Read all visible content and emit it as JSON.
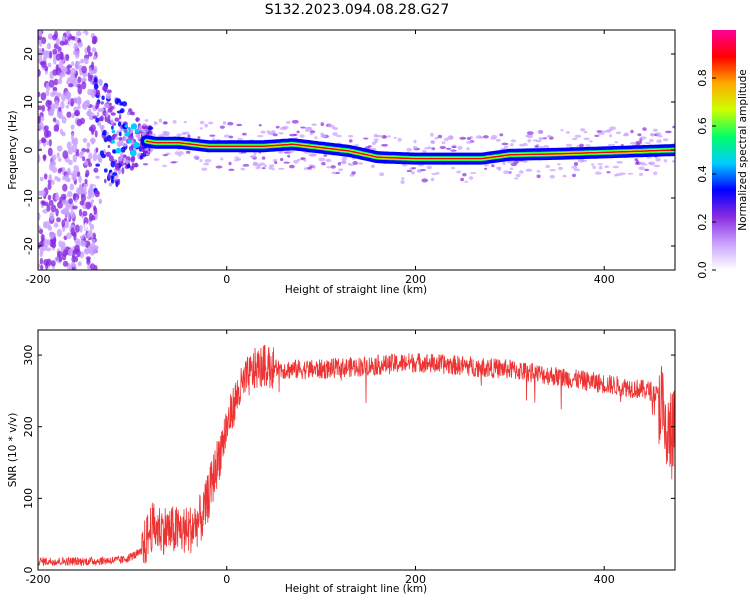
{
  "title": "S132.2023.094.08.28.G27",
  "chart_data": [
    {
      "type": "heatmap",
      "xlabel": "Height of straight line (km)",
      "ylabel": "Frequency (Hz)",
      "xlim": [
        -200,
        475
      ],
      "ylim": [
        -25,
        25
      ],
      "xticks": [
        -200,
        0,
        200,
        400
      ],
      "yticks": [
        20,
        10,
        0,
        -10,
        -20
      ],
      "grid": false,
      "colorbar": {
        "label": "Normalized spectral amplitude",
        "range": [
          0,
          1
        ],
        "ticks": [
          0.0,
          0.2,
          0.4,
          0.6,
          0.8
        ],
        "colors": [
          "#ffffff",
          "#c8a0ff",
          "#8a2be2",
          "#0000ff",
          "#00ccff",
          "#00ff66",
          "#ccff00",
          "#ffaa00",
          "#ff0000",
          "#ff0099"
        ]
      },
      "ridge": {
        "description_points_x": [
          -90,
          -75,
          -50,
          -20,
          0,
          40,
          70,
          100,
          130,
          160,
          200,
          270,
          300,
          350,
          400,
          475
        ],
        "frequency_hz": [
          2,
          1.5,
          1.5,
          0.8,
          0.8,
          0.8,
          1.2,
          0.5,
          -0.2,
          -1.5,
          -1.8,
          -1.8,
          -1.0,
          -0.8,
          -0.5,
          0
        ]
      }
    },
    {
      "type": "line",
      "xlabel": "Height of straight line (km)",
      "ylabel": "SNR (10 * v/v)",
      "xlim": [
        -200,
        475
      ],
      "ylim": [
        0,
        335
      ],
      "xticks": [
        -200,
        0,
        200,
        400
      ],
      "yticks": [
        0,
        100,
        200,
        300
      ],
      "color": "#ee3333",
      "series": [
        {
          "x": [
            -200,
            -150,
            -110,
            -90,
            -80,
            -60,
            -40,
            -25,
            -10,
            0,
            10,
            20,
            30,
            40,
            60,
            100,
            150,
            200,
            250,
            300,
            350,
            400,
            450,
            460,
            465,
            475
          ],
          "values": [
            12,
            12,
            14,
            25,
            60,
            55,
            55,
            75,
            150,
            200,
            240,
            265,
            280,
            285,
            280,
            280,
            285,
            290,
            285,
            280,
            270,
            260,
            250,
            240,
            180,
            190
          ]
        }
      ]
    }
  ]
}
